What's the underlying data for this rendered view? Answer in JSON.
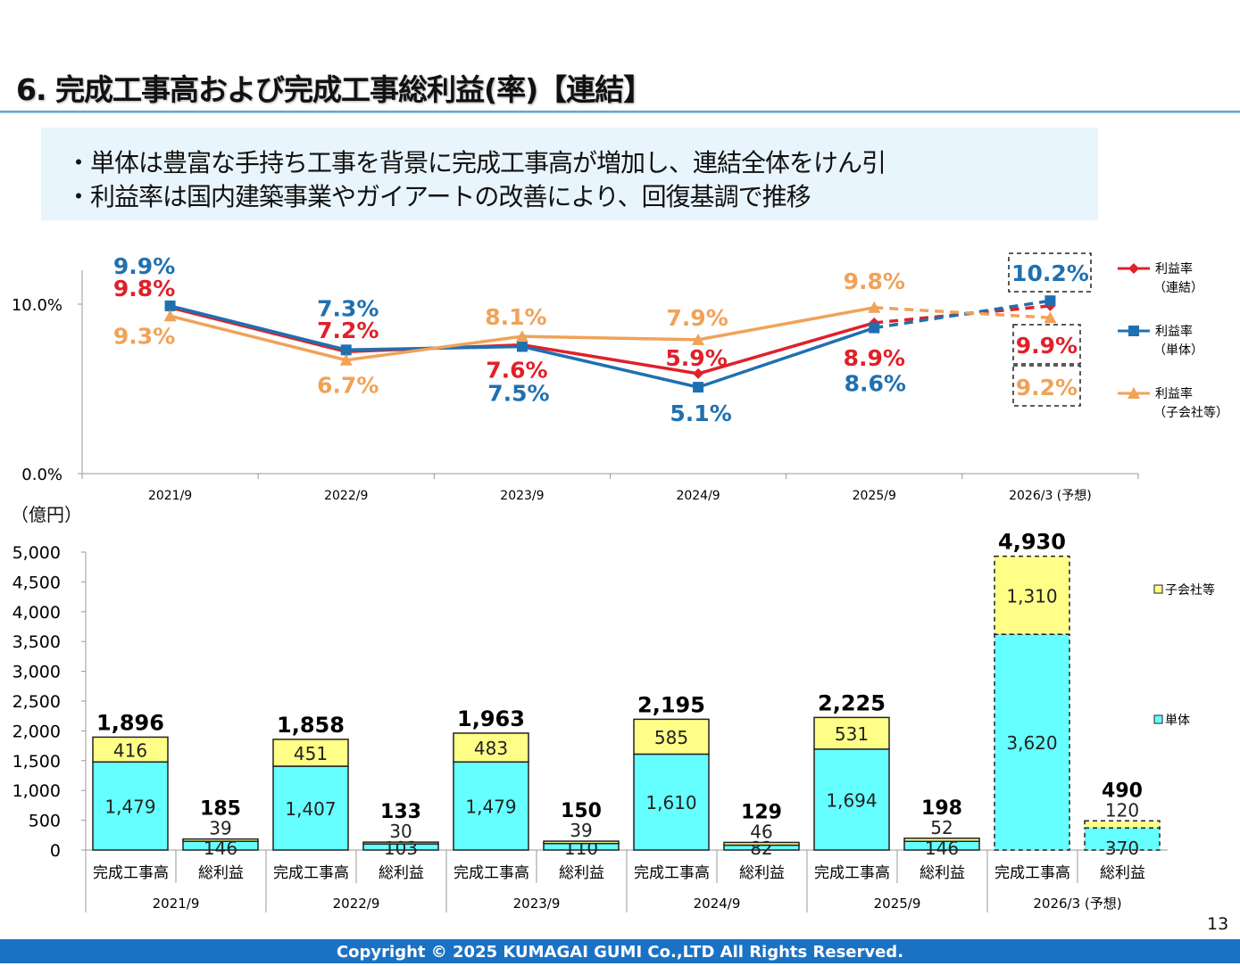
{
  "title": "6. 完成工事高および完成工事総利益(率)【連結】",
  "summary": [
    "・単体は豊富な手持ち工事を背景に完成工事高が増加し、連結全体をけん引",
    "・利益率は国内建築事業やガイアートの改善により、回復基調で推移"
  ],
  "colors": {
    "red": "#e0202a",
    "blue": "#1f70b0",
    "orange": "#f0a258",
    "cyan": "#66ffff",
    "yellow": "#ffff88",
    "footer": "#1b72c4"
  },
  "chart_data": [
    {
      "type": "line",
      "categories": [
        "2021/9",
        "2022/9",
        "2023/9",
        "2024/9",
        "2025/9",
        "2026/3 (予想)"
      ],
      "yticks": [
        "0.0%",
        "10.0%"
      ],
      "ylim": [
        0,
        12
      ],
      "forecast_dashed_last_segment": true,
      "legend_position": "right",
      "series": [
        {
          "name": "利益率\n（連結）",
          "legend": [
            "利益率",
            "（連結）"
          ],
          "color": "#e0202a",
          "marker": "diamond",
          "values": [
            9.8,
            7.2,
            7.6,
            5.9,
            8.9,
            9.9
          ],
          "labels": [
            "9.8%",
            "7.2%",
            "7.6%",
            "5.9%",
            "8.9%",
            "9.9%"
          ]
        },
        {
          "name": "利益率\n（単体）",
          "legend": [
            "利益率",
            "（単体）"
          ],
          "color": "#1f70b0",
          "marker": "square",
          "values": [
            9.9,
            7.3,
            7.5,
            5.1,
            8.6,
            10.2
          ],
          "labels": [
            "9.9%",
            "7.3%",
            "7.5%",
            "5.1%",
            "8.6%",
            "10.2%"
          ]
        },
        {
          "name": "利益率\n（子会社等）",
          "legend": [
            "利益率",
            "（子会社等）"
          ],
          "color": "#f0a258",
          "marker": "triangle",
          "values": [
            9.3,
            6.7,
            8.1,
            7.9,
            9.8,
            9.2
          ],
          "labels": [
            "9.3%",
            "6.7%",
            "8.1%",
            "7.9%",
            "9.8%",
            "9.2%"
          ]
        }
      ]
    },
    {
      "type": "bar",
      "stacked": true,
      "unit": "（億円）",
      "groups": [
        "2021/9",
        "2022/9",
        "2023/9",
        "2024/9",
        "2025/9",
        "2026/3 (予想)"
      ],
      "subcategories": [
        "完成工事高",
        "総利益"
      ],
      "ylim": [
        0,
        5000
      ],
      "yticks": [
        "0",
        "500",
        "1,000",
        "1,500",
        "2,000",
        "2,500",
        "3,000",
        "3,500",
        "4,000",
        "4,500",
        "5,000"
      ],
      "legend_position": "right",
      "series": [
        {
          "name": "単体",
          "color": "#66ffff",
          "revenue": [
            1479,
            1407,
            1479,
            1610,
            1694,
            3620
          ],
          "profit": [
            146,
            103,
            110,
            82,
            146,
            370
          ],
          "revenue_labels": [
            "1,479",
            "1,407",
            "1,479",
            "1,610",
            "1,694",
            "3,620"
          ],
          "profit_labels": [
            "146",
            "103",
            "110",
            "82",
            "146",
            "370"
          ]
        },
        {
          "name": "子会社等",
          "color": "#ffff88",
          "revenue": [
            416,
            451,
            483,
            585,
            531,
            1310
          ],
          "profit": [
            39,
            30,
            39,
            46,
            52,
            120
          ],
          "revenue_labels": [
            "416",
            "451",
            "483",
            "585",
            "531",
            "1,310"
          ],
          "profit_labels": [
            "39",
            "30",
            "39",
            "46",
            "52",
            "120"
          ]
        }
      ],
      "totals_revenue": [
        1896,
        1858,
        1963,
        2195,
        2225,
        4930
      ],
      "totals_profit": [
        185,
        133,
        150,
        129,
        198,
        490
      ],
      "totals_revenue_labels": [
        "1,896",
        "1,858",
        "1,963",
        "2,195",
        "2,225",
        "4,930"
      ],
      "totals_profit_labels": [
        "185",
        "133",
        "150",
        "129",
        "198",
        "490"
      ],
      "forecast_dashed_last_group": true
    }
  ],
  "page_number": "13",
  "footer": "Copyright © 2025 KUMAGAI GUMI Co.,LTD All Rights Reserved."
}
